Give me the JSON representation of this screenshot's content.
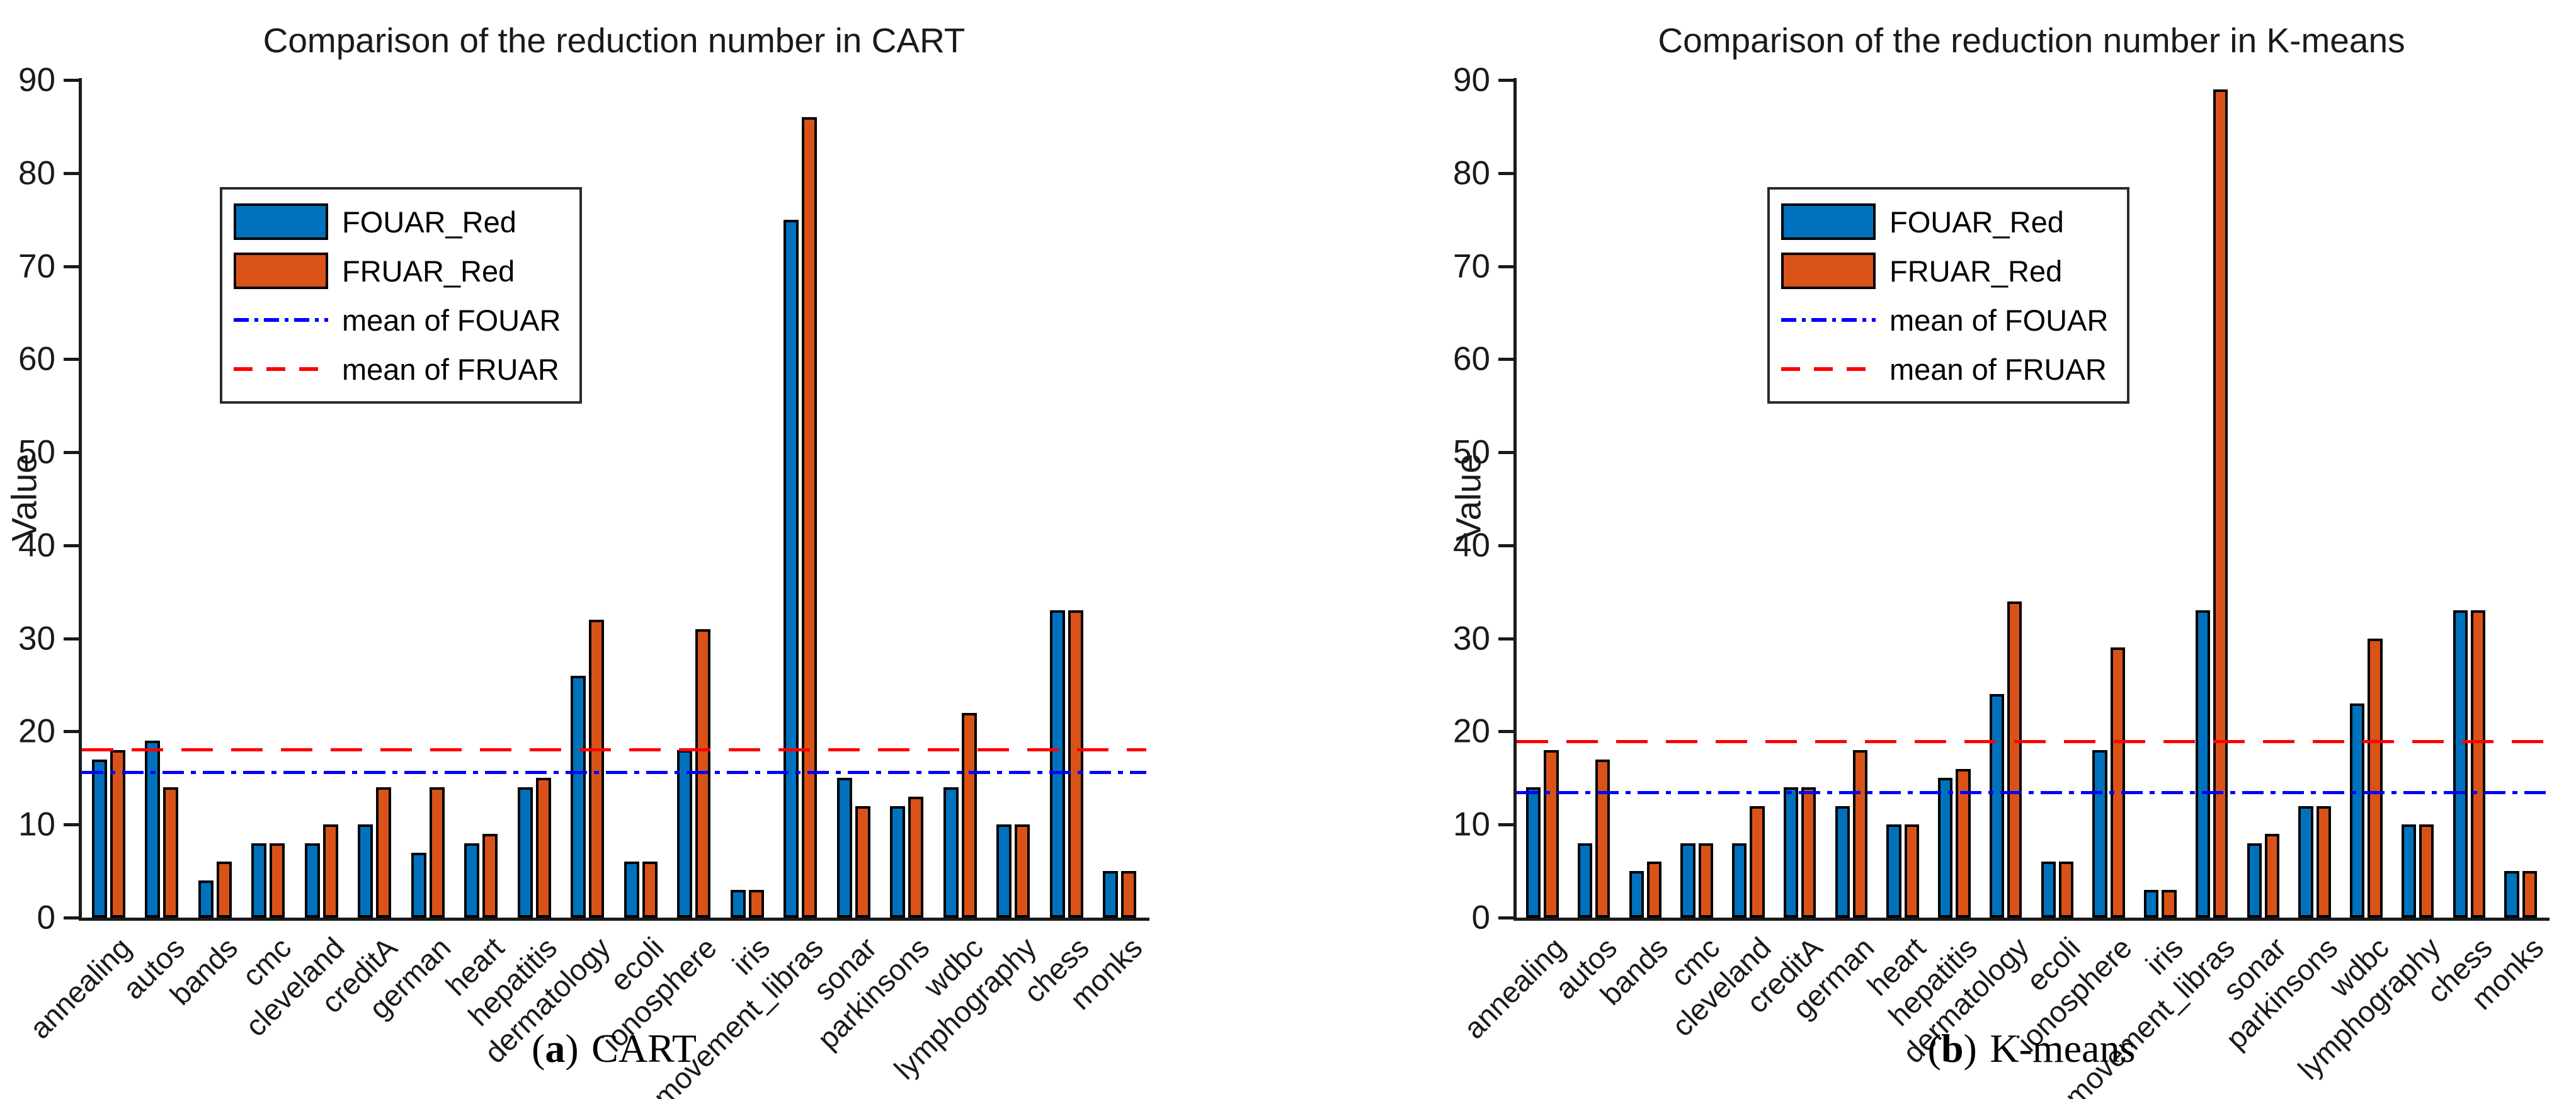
{
  "figure": {
    "captions": [
      {
        "open": "(",
        "letter": "a",
        "close": ")",
        "text": "CART"
      },
      {
        "open": "(",
        "letter": "b",
        "close": ")",
        "text": "K-means"
      }
    ]
  },
  "colors": {
    "bar_blue": "#0072BD",
    "bar_orange": "#D95319",
    "bar_edge": "#000000",
    "mean_fouar_line": "#0000FF",
    "mean_fruar_line": "#FF0000",
    "axis": "#1A1A1A",
    "background": "#FFFFFF"
  },
  "chart_data": [
    {
      "type": "bar",
      "title": "Comparison of the reduction number in CART",
      "xlabel": "",
      "ylabel": "Value",
      "ylim": [
        0,
        90
      ],
      "yticks": [
        0,
        10,
        20,
        30,
        40,
        50,
        60,
        70,
        80,
        90
      ],
      "grid": false,
      "legend_position": "top-left",
      "legend": [
        "FOUAR_Red",
        "FRUAR_Red",
        "mean of FOUAR",
        "mean of FRUAR"
      ],
      "categories": [
        "annealing",
        "autos",
        "bands",
        "cmc",
        "cleveland",
        "creditA",
        "german",
        "heart",
        "hepatitis",
        "dermatology",
        "ecoli",
        "ionosphere",
        "iris",
        "movement_libras",
        "sonar",
        "parkinsons",
        "wdbc",
        "lymphography",
        "chess",
        "monks"
      ],
      "series": [
        {
          "name": "FOUAR_Red",
          "color": "#0072BD",
          "values": [
            17,
            19,
            4,
            8,
            8,
            10,
            7,
            8,
            14,
            26,
            6,
            18,
            3,
            75,
            15,
            12,
            14,
            10,
            33,
            5
          ]
        },
        {
          "name": "FRUAR_Red",
          "color": "#D95319",
          "values": [
            18,
            14,
            6,
            8,
            10,
            14,
            14,
            9,
            15,
            32,
            6,
            31,
            3,
            86,
            12,
            13,
            22,
            10,
            33,
            5
          ]
        }
      ],
      "mean_lines": [
        {
          "label": "mean of FOUAR",
          "value": 15.6,
          "color": "#0000FF",
          "style": "dash-dot"
        },
        {
          "label": "mean of FRUAR",
          "value": 18.05,
          "color": "#FF0000",
          "style": "dashed"
        }
      ]
    },
    {
      "type": "bar",
      "title": "Comparison of the reduction number in K-means",
      "xlabel": "",
      "ylabel": "Value",
      "ylim": [
        0,
        90
      ],
      "yticks": [
        0,
        10,
        20,
        30,
        40,
        50,
        60,
        70,
        80,
        90
      ],
      "grid": false,
      "legend_position": "top-left",
      "legend": [
        "FOUAR_Red",
        "FRUAR_Red",
        "mean of FOUAR",
        "mean of FRUAR"
      ],
      "categories": [
        "annealing",
        "autos",
        "bands",
        "cmc",
        "cleveland",
        "creditA",
        "german",
        "heart",
        "hepatitis",
        "dermatology",
        "ecoli",
        "ionosphere",
        "iris",
        "movement_libras",
        "sonar",
        "parkinsons",
        "wdbc",
        "lymphography",
        "chess",
        "monks"
      ],
      "series": [
        {
          "name": "FOUAR_Red",
          "color": "#0072BD",
          "values": [
            14,
            8,
            5,
            8,
            8,
            14,
            12,
            10,
            15,
            24,
            6,
            18,
            3,
            33,
            8,
            12,
            23,
            10,
            33,
            5
          ]
        },
        {
          "name": "FRUAR_Red",
          "color": "#D95319",
          "values": [
            18,
            17,
            6,
            8,
            12,
            14,
            18,
            10,
            16,
            34,
            6,
            29,
            3,
            89,
            9,
            12,
            30,
            10,
            33,
            5
          ]
        }
      ],
      "mean_lines": [
        {
          "label": "mean of FOUAR",
          "value": 13.45,
          "color": "#0000FF",
          "style": "dash-dot"
        },
        {
          "label": "mean of FRUAR",
          "value": 18.95,
          "color": "#FF0000",
          "style": "dashed"
        }
      ]
    }
  ]
}
